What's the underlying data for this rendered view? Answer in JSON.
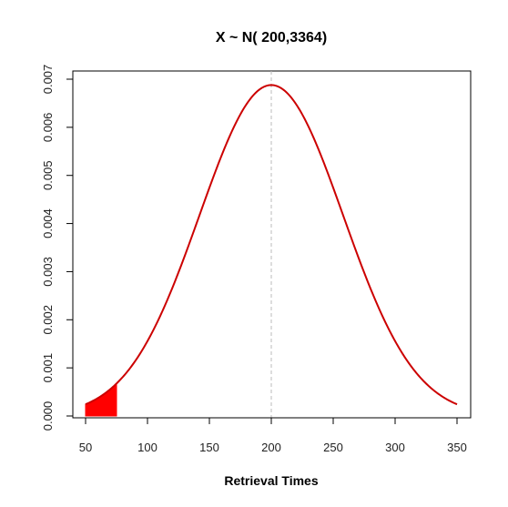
{
  "chart_data": {
    "type": "line",
    "title": "X ~  N( 200,3364)",
    "xlabel": "Retrieval Times",
    "ylabel": "",
    "xlim": [
      50,
      350
    ],
    "ylim": [
      0,
      0.007
    ],
    "x_ticks": [
      50,
      100,
      150,
      200,
      250,
      300,
      350
    ],
    "y_ticks": [
      0.0,
      0.001,
      0.002,
      0.003,
      0.004,
      0.005,
      0.006,
      0.007
    ],
    "x_tick_labels": [
      "50",
      "100",
      "150",
      "200",
      "250",
      "300",
      "350"
    ],
    "y_tick_labels": [
      "0.000",
      "0.001",
      "0.002",
      "0.003",
      "0.004",
      "0.005",
      "0.006",
      "0.007"
    ],
    "distribution": {
      "family": "normal",
      "mean": 200,
      "variance": 3364
    },
    "series": [
      {
        "x": [
          50,
          60,
          70,
          80,
          90,
          100,
          110,
          120,
          130,
          140,
          150,
          160,
          170,
          180,
          190,
          200,
          210,
          220,
          230,
          240,
          250,
          260,
          270,
          280,
          290,
          300,
          310,
          320,
          330,
          340,
          350
        ],
        "y": [
          0.00023,
          0.00033,
          0.00046,
          0.0008,
          0.00112,
          0.00155,
          0.002,
          0.00253,
          0.0031,
          0.00375,
          0.0046,
          0.0054,
          0.00607,
          0.00658,
          0.00682,
          0.00688,
          0.00682,
          0.00658,
          0.00607,
          0.0054,
          0.0046,
          0.00375,
          0.0031,
          0.00253,
          0.002,
          0.0014,
          0.00095,
          0.00062,
          0.00045,
          0.00035,
          0.00025
        ],
        "color": "#cc0000"
      }
    ],
    "shaded_region": {
      "x_from": 50,
      "x_to": 75,
      "color": "#ff0000"
    },
    "reference_line": {
      "x": 200,
      "color": "#bbbbbb",
      "style": "dashed"
    },
    "grid": false,
    "legend": "none"
  }
}
